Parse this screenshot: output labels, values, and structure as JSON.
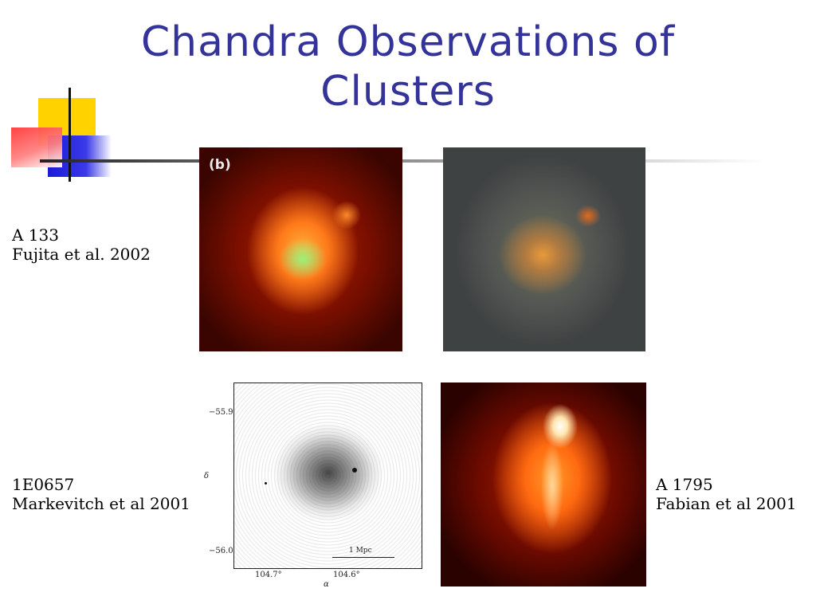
{
  "slide": {
    "title_line1": "Chandra Observations of",
    "title_line2": "Clusters"
  },
  "captions": {
    "a133_name": "A 133",
    "a133_ref": "Fujita et al. 2002",
    "e0657_name": "1E0657",
    "e0657_ref": "Markevitch et al 2001",
    "a1795_name": "A 1795",
    "a1795_ref": "Fabian et al 2001"
  },
  "images": {
    "a133_panel_label": "(b)",
    "e0657_dec_top": "−55.9°",
    "e0657_dec_bottom": "−56.0°",
    "e0657_dec_symbol": "δ",
    "e0657_ra_left": "104.7°",
    "e0657_ra_right": "104.6°",
    "e0657_ra_symbol": "α",
    "e0657_scale": "1 Mpc"
  },
  "colors": {
    "title": "#333399",
    "deco_yellow": "#ffd200",
    "deco_blue": "#1a1ad9",
    "deco_red": "#ff3a3a"
  }
}
